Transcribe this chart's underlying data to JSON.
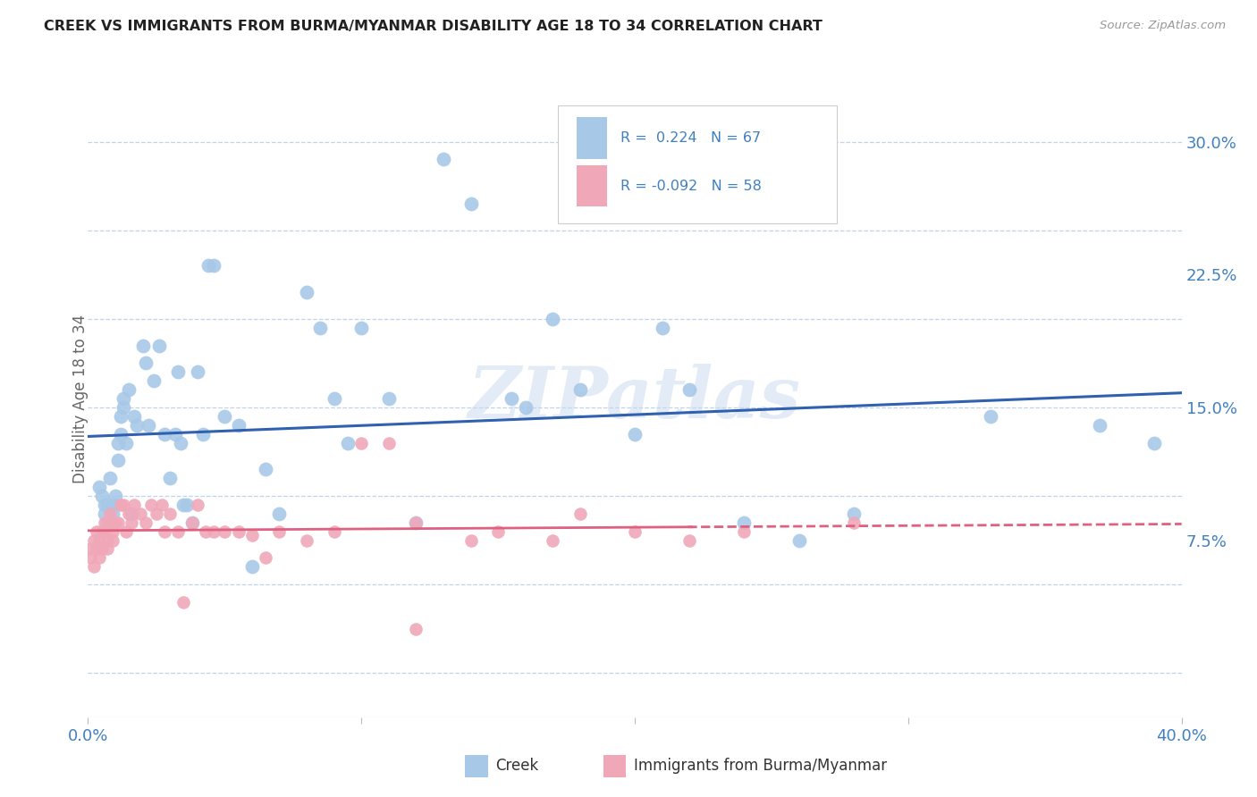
{
  "title": "CREEK VS IMMIGRANTS FROM BURMA/MYANMAR DISABILITY AGE 18 TO 34 CORRELATION CHART",
  "source": "Source: ZipAtlas.com",
  "ylabel": "Disability Age 18 to 34",
  "ytick_labels": [
    "7.5%",
    "15.0%",
    "22.5%",
    "30.0%"
  ],
  "ytick_values": [
    0.075,
    0.15,
    0.225,
    0.3
  ],
  "xlim": [
    0.0,
    0.4
  ],
  "ylim": [
    -0.025,
    0.335
  ],
  "creek_color": "#A8C8E8",
  "immigrant_color": "#F0A8B8",
  "creek_line_color": "#3060B0",
  "immigrant_line_color": "#E06080",
  "tick_label_color": "#4080C0",
  "watermark": "ZIPatlas",
  "creek_R": 0.224,
  "creek_N": 67,
  "immigrant_R": -0.092,
  "immigrant_N": 58,
  "creek_scatter_x": [
    0.004,
    0.005,
    0.006,
    0.006,
    0.007,
    0.007,
    0.008,
    0.008,
    0.009,
    0.009,
    0.01,
    0.01,
    0.011,
    0.011,
    0.012,
    0.012,
    0.013,
    0.013,
    0.014,
    0.015,
    0.016,
    0.017,
    0.018,
    0.02,
    0.021,
    0.022,
    0.024,
    0.026,
    0.028,
    0.03,
    0.032,
    0.033,
    0.034,
    0.035,
    0.036,
    0.038,
    0.04,
    0.042,
    0.044,
    0.046,
    0.05,
    0.055,
    0.06,
    0.065,
    0.07,
    0.08,
    0.085,
    0.09,
    0.095,
    0.1,
    0.11,
    0.12,
    0.13,
    0.14,
    0.155,
    0.16,
    0.17,
    0.18,
    0.2,
    0.21,
    0.22,
    0.24,
    0.26,
    0.28,
    0.33,
    0.37,
    0.39
  ],
  "creek_scatter_y": [
    0.105,
    0.1,
    0.095,
    0.09,
    0.095,
    0.085,
    0.11,
    0.095,
    0.09,
    0.085,
    0.1,
    0.095,
    0.13,
    0.12,
    0.145,
    0.135,
    0.155,
    0.15,
    0.13,
    0.16,
    0.09,
    0.145,
    0.14,
    0.185,
    0.175,
    0.14,
    0.165,
    0.185,
    0.135,
    0.11,
    0.135,
    0.17,
    0.13,
    0.095,
    0.095,
    0.085,
    0.17,
    0.135,
    0.23,
    0.23,
    0.145,
    0.14,
    0.06,
    0.115,
    0.09,
    0.215,
    0.195,
    0.155,
    0.13,
    0.195,
    0.155,
    0.085,
    0.29,
    0.265,
    0.155,
    0.15,
    0.2,
    0.16,
    0.135,
    0.195,
    0.16,
    0.085,
    0.075,
    0.09,
    0.145,
    0.14,
    0.13
  ],
  "immigrant_scatter_x": [
    0.001,
    0.001,
    0.002,
    0.002,
    0.003,
    0.003,
    0.004,
    0.004,
    0.005,
    0.005,
    0.006,
    0.006,
    0.007,
    0.007,
    0.008,
    0.008,
    0.009,
    0.009,
    0.01,
    0.011,
    0.012,
    0.013,
    0.014,
    0.015,
    0.016,
    0.017,
    0.019,
    0.021,
    0.023,
    0.025,
    0.027,
    0.028,
    0.03,
    0.033,
    0.035,
    0.038,
    0.04,
    0.043,
    0.046,
    0.05,
    0.055,
    0.06,
    0.065,
    0.07,
    0.08,
    0.09,
    0.1,
    0.11,
    0.12,
    0.14,
    0.15,
    0.17,
    0.18,
    0.2,
    0.22,
    0.24,
    0.28,
    0.12
  ],
  "immigrant_scatter_y": [
    0.07,
    0.065,
    0.075,
    0.06,
    0.08,
    0.07,
    0.075,
    0.065,
    0.08,
    0.07,
    0.085,
    0.08,
    0.075,
    0.07,
    0.09,
    0.085,
    0.08,
    0.075,
    0.085,
    0.085,
    0.095,
    0.095,
    0.08,
    0.09,
    0.085,
    0.095,
    0.09,
    0.085,
    0.095,
    0.09,
    0.095,
    0.08,
    0.09,
    0.08,
    0.04,
    0.085,
    0.095,
    0.08,
    0.08,
    0.08,
    0.08,
    0.078,
    0.065,
    0.08,
    0.075,
    0.08,
    0.13,
    0.13,
    0.085,
    0.075,
    0.08,
    0.075,
    0.09,
    0.08,
    0.075,
    0.08,
    0.085,
    0.025
  ],
  "imm_line_solid_end": 0.22,
  "grid_color": "#C0D4E8",
  "grid_style": "--"
}
